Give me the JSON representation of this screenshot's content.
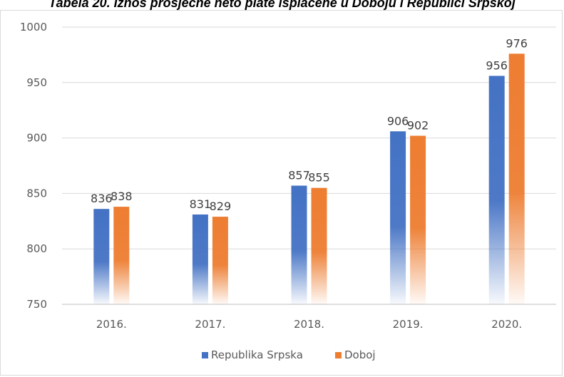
{
  "title": "Tabela 20. Iznos prosječne neto plate isplaćene u Doboju i Republici Srpskoj",
  "chart_data": {
    "type": "bar",
    "categories": [
      "2016.",
      "2017.",
      "2018.",
      "2019.",
      "2020."
    ],
    "series": [
      {
        "name": "Republika Srpska",
        "values": [
          836,
          831,
          857,
          906,
          956
        ],
        "color": "#4472c4"
      },
      {
        "name": "Doboj",
        "values": [
          838,
          829,
          855,
          902,
          976
        ],
        "color": "#ed7d31"
      }
    ],
    "ylim": [
      750,
      1000
    ],
    "yticks": [
      750,
      800,
      850,
      900,
      950,
      1000
    ],
    "grid": true,
    "legend_position": "bottom",
    "data_labels": true
  }
}
